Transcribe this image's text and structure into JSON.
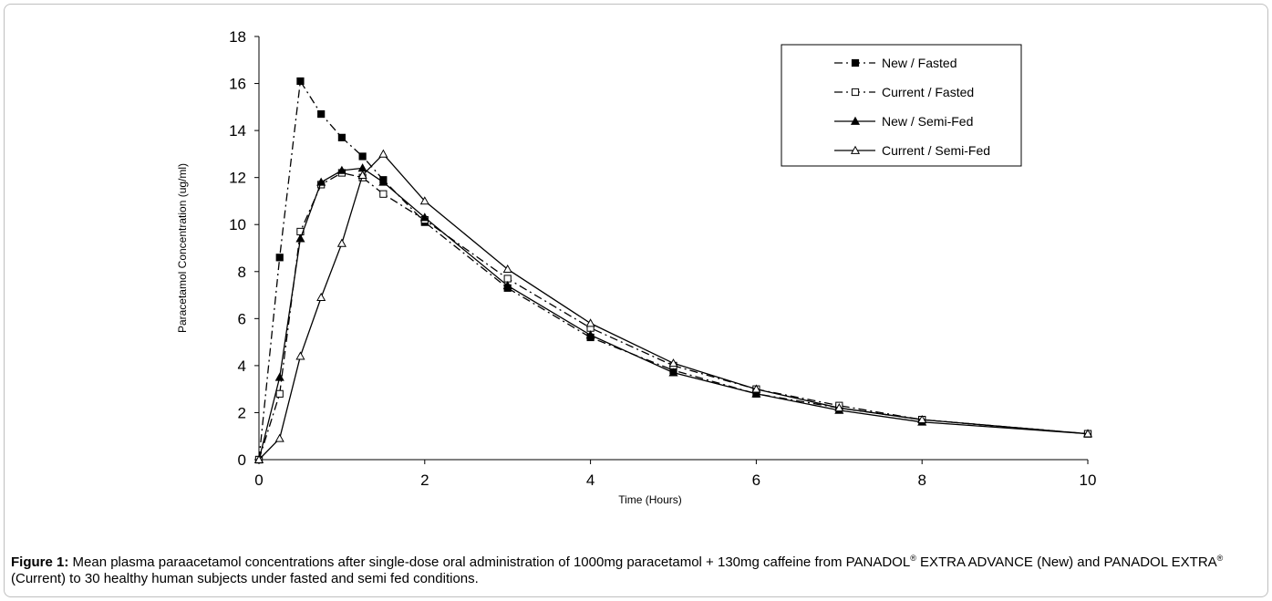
{
  "chart_data": {
    "type": "line",
    "xlabel": "Time (Hours)",
    "ylabel": "Paracetamol Concentration (ug/ml)",
    "xlim": [
      0,
      10
    ],
    "ylim": [
      0,
      18
    ],
    "xticks": [
      "0",
      "2",
      "4",
      "6",
      "8",
      "10"
    ],
    "yticks": [
      "0",
      "2",
      "4",
      "6",
      "8",
      "10",
      "12",
      "14",
      "16",
      "18"
    ],
    "grid": false,
    "legend_position": "top-right",
    "series": [
      {
        "name": "New / Fasted",
        "marker": "filled-square",
        "line": "dash-dot",
        "x": [
          0,
          0.25,
          0.5,
          0.75,
          1,
          1.25,
          1.5,
          2,
          3,
          4,
          5,
          6,
          7,
          8,
          10
        ],
        "y": [
          0,
          8.6,
          16.1,
          14.7,
          13.7,
          12.9,
          11.9,
          10.1,
          7.3,
          5.2,
          3.8,
          2.8,
          2.2,
          1.7,
          1.1
        ]
      },
      {
        "name": "Current / Fasted",
        "marker": "open-square",
        "line": "dash-dot",
        "x": [
          0,
          0.25,
          0.5,
          0.75,
          1,
          1.25,
          1.5,
          2,
          3,
          4,
          5,
          6,
          7,
          8,
          10
        ],
        "y": [
          0,
          2.8,
          9.7,
          11.7,
          12.2,
          12.0,
          11.3,
          10.2,
          7.7,
          5.6,
          4.0,
          3.0,
          2.3,
          1.7,
          1.1
        ]
      },
      {
        "name": "New / Semi-Fed",
        "marker": "filled-triangle",
        "line": "solid",
        "x": [
          0,
          0.25,
          0.5,
          0.75,
          1,
          1.25,
          1.5,
          2,
          3,
          4,
          5,
          6,
          7,
          8,
          10
        ],
        "y": [
          0,
          3.5,
          9.4,
          11.8,
          12.3,
          12.4,
          11.8,
          10.3,
          7.4,
          5.3,
          3.7,
          2.8,
          2.1,
          1.6,
          1.1
        ]
      },
      {
        "name": "Current / Semi-Fed",
        "marker": "open-triangle",
        "line": "solid",
        "x": [
          0,
          0.25,
          0.5,
          0.75,
          1,
          1.25,
          1.5,
          2,
          3,
          4,
          5,
          6,
          7,
          8,
          10
        ],
        "y": [
          0,
          0.9,
          4.4,
          6.9,
          9.2,
          12.1,
          13.0,
          11.0,
          8.1,
          5.8,
          4.1,
          3.0,
          2.2,
          1.7,
          1.1
        ]
      }
    ]
  },
  "caption": {
    "label": "Figure 1:",
    "text_1": " Mean plasma paraacetamol concentrations after single-dose oral administration of 1000mg paracetamol + 130mg caffeine from PANADOL",
    "mark_1": "®",
    "text_2": " EXTRA ADVANCE (New) and PANADOL EXTRA",
    "mark_2": "®",
    "text_3": "  (Current) to 30 healthy human subjects under fasted and semi fed conditions."
  }
}
